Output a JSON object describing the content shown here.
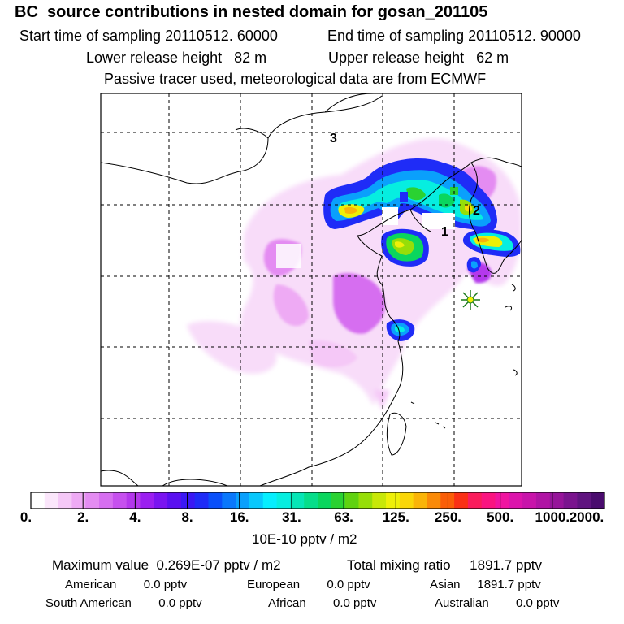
{
  "header": {
    "title": "BC  source contributions in nested domain for gosan_201105",
    "start_label": "Start time of sampling 20110512. 60000",
    "end_label": "End time of sampling 20110512. 90000",
    "lower_label": "Lower release height   82 m",
    "upper_label": "Upper release height   62 m",
    "tracer_note": "Passive tracer used, meteorological data are from ECMWF"
  },
  "map": {
    "labels": [
      "3",
      "2",
      "1"
    ],
    "receptor_marker": "asterisk-star-icon"
  },
  "colorbar": {
    "tick_labels": [
      "0.",
      "2.",
      "4.",
      "8.",
      "16.",
      "31.",
      "63.",
      "125.",
      "250.",
      "500.",
      "1000.",
      "2000."
    ],
    "colors": [
      "#ffffff",
      "#fbe6fb",
      "#f5c8f7",
      "#eeaaf4",
      "#e48cf2",
      "#d66ef0",
      "#c650ee",
      "#b437ec",
      "#9b1ff0",
      "#7a14f0",
      "#5a10f0",
      "#3a18f4",
      "#1f2cf7",
      "#0a50fa",
      "#0a78fb",
      "#0aa0fc",
      "#08c8fd",
      "#06eefe",
      "#06eee0",
      "#06e6b6",
      "#06de8a",
      "#0ad65e",
      "#2ad232",
      "#60d210",
      "#96de08",
      "#c8e808",
      "#eef008",
      "#fad608",
      "#fab408",
      "#fa8a08",
      "#fa5e08",
      "#fa3016",
      "#fa1c5c",
      "#fa1480",
      "#f014a0",
      "#dc14ac",
      "#c814aa",
      "#b014a4",
      "#96149a",
      "#7a148e",
      "#601480",
      "#4a0c6e"
    ],
    "unit": "10E-10 pptv / m2"
  },
  "stats": {
    "max_label": "Maximum value  0.269E-07 pptv / m2",
    "total_label": "Total mixing ratio     1891.7 pptv",
    "american": "American        0.0 pptv",
    "european": "European        0.0 pptv",
    "asian": "Asian     1891.7 pptv",
    "south_american": "South American        0.0 pptv",
    "african": "African        0.0 pptv",
    "australian": "Australian        0.0 pptv"
  }
}
